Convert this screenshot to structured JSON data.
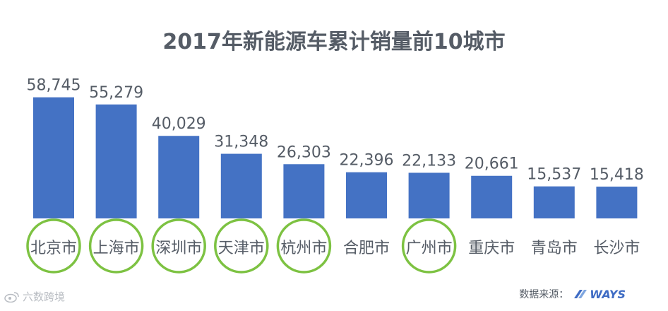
{
  "chart_data": {
    "type": "bar",
    "title": "2017年新能源车累计销量前10城市",
    "categories": [
      "北京市",
      "上海市",
      "深圳市",
      "天津市",
      "杭州市",
      "合肥市",
      "广州市",
      "重庆市",
      "青岛市",
      "长沙市"
    ],
    "values": [
      58745,
      55279,
      40029,
      31348,
      26303,
      22396,
      22133,
      20661,
      15537,
      15418
    ],
    "value_labels": [
      "58,745",
      "55,279",
      "40,029",
      "31,348",
      "26,303",
      "22,396",
      "22,133",
      "20,661",
      "15,537",
      "15,418"
    ],
    "highlighted": [
      "北京市",
      "上海市",
      "深圳市",
      "天津市",
      "杭州市",
      "广州市"
    ],
    "xlabel": "",
    "ylabel": "",
    "ylim": [
      0,
      60000
    ],
    "grid": false,
    "colors": {
      "bar": "#4472c4",
      "highlight_ring": "#7dc242",
      "text": "#555c66"
    }
  },
  "source": {
    "label": "数据来源：",
    "logo_text": "WAYS"
  },
  "watermark": {
    "text": "六数跨境"
  }
}
